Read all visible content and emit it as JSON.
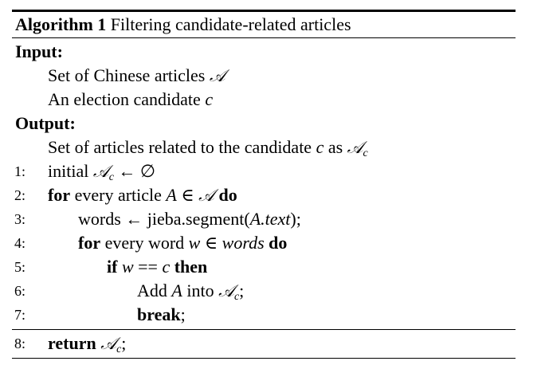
{
  "caption": {
    "label": "Algorithm 1",
    "title": "Filtering candidate-related articles"
  },
  "input": {
    "heading": "Input:",
    "items": [
      {
        "text": "Set of Chinese articles",
        "symbol": "𝒜"
      },
      {
        "text": "An election candidate",
        "symbol": "c"
      }
    ]
  },
  "output": {
    "heading": "Output:",
    "text": "Set of articles related to the candidate",
    "symbol": "c",
    "as_word": "as",
    "set_symbol": "𝒜",
    "set_sub": "c"
  },
  "steps": [
    {
      "num": "1:",
      "parts": [
        "initial",
        "𝒜",
        "c",
        "← ∅"
      ]
    },
    {
      "num": "2:",
      "kw": "for",
      "text": "every article",
      "var": "A",
      "in": "∈",
      "set": "𝒜",
      "kw_end": "do"
    },
    {
      "num": "3:",
      "pre": "words ←",
      "call": "jieba.segment(",
      "arg_var": "A",
      "arg_rest": ".text",
      "close": ");"
    },
    {
      "num": "4:",
      "kw": "for",
      "text": "every word",
      "var": "w",
      "in": "∈",
      "set": "words",
      "kw_end": "do"
    },
    {
      "num": "5:",
      "kw": "if",
      "var": "w",
      "op": "==",
      "rhs": "c",
      "kw_end": "then"
    },
    {
      "num": "6:",
      "pre": "Add",
      "var": "A",
      "mid": "into",
      "set": "𝒜",
      "sub": "c",
      "end": ";"
    },
    {
      "num": "7:",
      "kw": "break",
      "end": ";"
    },
    {
      "num": "8:",
      "kw": "return",
      "set": "𝒜",
      "sub": "c",
      "end": ";"
    }
  ]
}
